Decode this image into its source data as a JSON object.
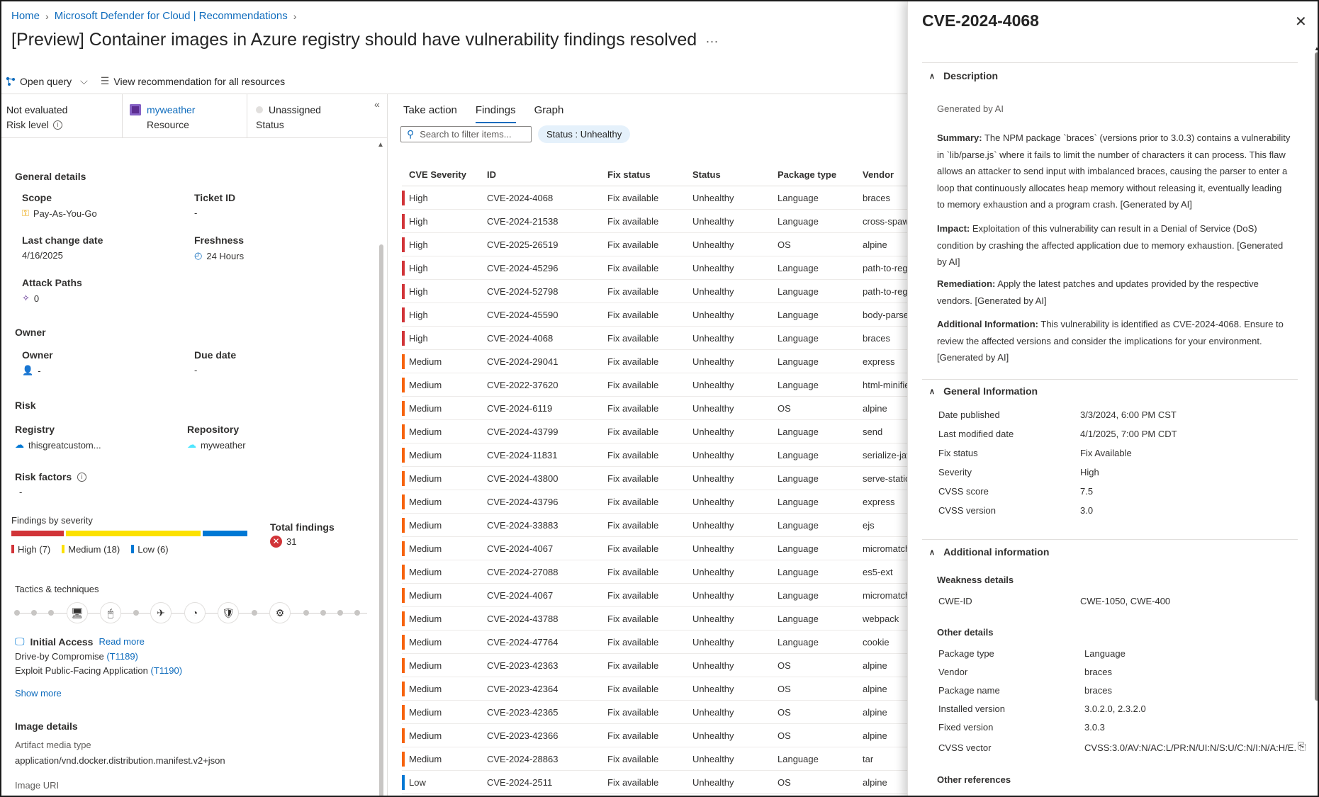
{
  "breadcrumb": {
    "home": "Home",
    "parent": "Microsoft Defender for Cloud | Recommendations"
  },
  "page_title": "[Preview] Container images in Azure registry should have vulnerability findings resolved",
  "title_more": "...",
  "toolbar": {
    "open_query": "Open query",
    "view_all": "View recommendation for all resources"
  },
  "summary": {
    "risk_value": "Not evaluated",
    "risk_label": "Risk level",
    "resource_value": "myweather",
    "resource_label": "Resource",
    "status_value": "Unassigned",
    "status_label": "Status"
  },
  "general": {
    "heading": "General details",
    "scope_label": "Scope",
    "scope_value": "Pay-As-You-Go",
    "ticket_label": "Ticket ID",
    "ticket_value": "-",
    "lastchange_label": "Last change date",
    "lastchange_value": "4/16/2025",
    "freshness_label": "Freshness",
    "freshness_value": "24 Hours",
    "attack_label": "Attack Paths",
    "attack_value": "0"
  },
  "owner": {
    "heading": "Owner",
    "owner_label": "Owner",
    "owner_value": "-",
    "due_label": "Due date",
    "due_value": "-"
  },
  "risk": {
    "heading": "Risk",
    "registry_label": "Registry",
    "registry_value": "thisgreatcustom...",
    "repo_label": "Repository",
    "repo_value": "myweather",
    "factors_label": "Risk factors",
    "factors_value": "-"
  },
  "findings": {
    "heading": "Findings by severity",
    "high": "High (7)",
    "medium": "Medium (18)",
    "low": "Low (6)",
    "high_count": 7,
    "medium_count": 18,
    "low_count": 6,
    "total_label": "Total findings",
    "total_value": "31",
    "colors": {
      "high": "#d13438",
      "medium": "#fce100",
      "low": "#0078d4"
    }
  },
  "tactics": {
    "heading": "Tactics & techniques",
    "initial_access": "Initial Access",
    "read_more": "Read more",
    "t1_text": "Drive-by Compromise",
    "t1_id": "(T1189)",
    "t2_text": "Exploit Public-Facing Application",
    "t2_id": "(T1190)",
    "show_more": "Show more"
  },
  "image": {
    "heading": "Image details",
    "media_label": "Artifact media type",
    "media_value": "application/vnd.docker.distribution.manifest.v2+json",
    "uri_label": "Image URI"
  },
  "tabs": [
    "Take action",
    "Findings",
    "Graph"
  ],
  "search_placeholder": "Search to filter items...",
  "status_filter": "Status : Unhealthy",
  "table": {
    "headers": [
      "CVE Severity",
      "ID",
      "Fix status",
      "Status",
      "Package type",
      "Vendor"
    ],
    "rows": [
      [
        "High",
        "CVE-2024-4068",
        "Fix available",
        "Unhealthy",
        "Language",
        "braces"
      ],
      [
        "High",
        "CVE-2024-21538",
        "Fix available",
        "Unhealthy",
        "Language",
        "cross-spawn"
      ],
      [
        "High",
        "CVE-2025-26519",
        "Fix available",
        "Unhealthy",
        "OS",
        "alpine"
      ],
      [
        "High",
        "CVE-2024-45296",
        "Fix available",
        "Unhealthy",
        "Language",
        "path-to-regexp"
      ],
      [
        "High",
        "CVE-2024-52798",
        "Fix available",
        "Unhealthy",
        "Language",
        "path-to-regexp"
      ],
      [
        "High",
        "CVE-2024-45590",
        "Fix available",
        "Unhealthy",
        "Language",
        "body-parser"
      ],
      [
        "High",
        "CVE-2024-4068",
        "Fix available",
        "Unhealthy",
        "Language",
        "braces"
      ],
      [
        "Medium",
        "CVE-2024-29041",
        "Fix available",
        "Unhealthy",
        "Language",
        "express"
      ],
      [
        "Medium",
        "CVE-2022-37620",
        "Fix available",
        "Unhealthy",
        "Language",
        "html-minifier"
      ],
      [
        "Medium",
        "CVE-2024-6119",
        "Fix available",
        "Unhealthy",
        "OS",
        "alpine"
      ],
      [
        "Medium",
        "CVE-2024-43799",
        "Fix available",
        "Unhealthy",
        "Language",
        "send"
      ],
      [
        "Medium",
        "CVE-2024-11831",
        "Fix available",
        "Unhealthy",
        "Language",
        "serialize-javascript"
      ],
      [
        "Medium",
        "CVE-2024-43800",
        "Fix available",
        "Unhealthy",
        "Language",
        "serve-static"
      ],
      [
        "Medium",
        "CVE-2024-43796",
        "Fix available",
        "Unhealthy",
        "Language",
        "express"
      ],
      [
        "Medium",
        "CVE-2024-33883",
        "Fix available",
        "Unhealthy",
        "Language",
        "ejs"
      ],
      [
        "Medium",
        "CVE-2024-4067",
        "Fix available",
        "Unhealthy",
        "Language",
        "micromatch"
      ],
      [
        "Medium",
        "CVE-2024-27088",
        "Fix available",
        "Unhealthy",
        "Language",
        "es5-ext"
      ],
      [
        "Medium",
        "CVE-2024-4067",
        "Fix available",
        "Unhealthy",
        "Language",
        "micromatch"
      ],
      [
        "Medium",
        "CVE-2024-43788",
        "Fix available",
        "Unhealthy",
        "Language",
        "webpack"
      ],
      [
        "Medium",
        "CVE-2024-47764",
        "Fix available",
        "Unhealthy",
        "Language",
        "cookie"
      ],
      [
        "Medium",
        "CVE-2023-42363",
        "Fix available",
        "Unhealthy",
        "OS",
        "alpine"
      ],
      [
        "Medium",
        "CVE-2023-42364",
        "Fix available",
        "Unhealthy",
        "OS",
        "alpine"
      ],
      [
        "Medium",
        "CVE-2023-42365",
        "Fix available",
        "Unhealthy",
        "OS",
        "alpine"
      ],
      [
        "Medium",
        "CVE-2023-42366",
        "Fix available",
        "Unhealthy",
        "OS",
        "alpine"
      ],
      [
        "Medium",
        "CVE-2024-28863",
        "Fix available",
        "Unhealthy",
        "Language",
        "tar"
      ],
      [
        "Low",
        "CVE-2024-2511",
        "Fix available",
        "Unhealthy",
        "OS",
        "alpine"
      ]
    ]
  },
  "panel": {
    "title": "CVE-2024-4068",
    "description_heading": "Description",
    "generated": "Generated by AI",
    "summary_label": "Summary:",
    "summary_text": "The NPM package `braces` (versions prior to 3.0.3) contains a vulnerability in `lib/parse.js` where it fails to limit the number of characters it can process. This flaw allows an attacker to send input with imbalanced braces, causing the parser to enter a loop that continuously allocates heap memory without releasing it, eventually leading to memory exhaustion and a program crash. [Generated by AI]",
    "impact_label": "Impact:",
    "impact_text": "Exploitation of this vulnerability can result in a Denial of Service (DoS) condition by crashing the affected application due to memory exhaustion. [Generated by AI]",
    "remediation_label": "Remediation:",
    "remediation_text": "Apply the latest patches and updates provided by the respective vendors. [Generated by AI]",
    "additional_label": "Additional Information:",
    "additional_text": "This vulnerability is identified as CVE-2024-4068. Ensure to review the affected versions and consider the implications for your environment. [Generated by AI]",
    "general_heading": "General Information",
    "general": [
      [
        "Date published",
        "3/3/2024, 6:00 PM CST"
      ],
      [
        "Last modified date",
        "4/1/2025, 7:00 PM CDT"
      ],
      [
        "Fix status",
        "Fix Available"
      ],
      [
        "Severity",
        "High"
      ],
      [
        "CVSS score",
        "7.5"
      ],
      [
        "CVSS version",
        "3.0"
      ]
    ],
    "additional_heading": "Additional information",
    "weakness_heading": "Weakness details",
    "cwe_label": "CWE-ID",
    "cwe_value": "CWE-1050, CWE-400",
    "other_heading": "Other details",
    "other": [
      [
        "Package type",
        "Language"
      ],
      [
        "Vendor",
        "braces"
      ],
      [
        "Package name",
        "braces"
      ],
      [
        "Installed version",
        "3.0.2.0, 2.3.2.0"
      ],
      [
        "Fixed version",
        "3.0.3"
      ],
      [
        "CVSS vector",
        "CVSS:3.0/AV:N/AC:L/PR:N/UI:N/S:U/C:N/I:N/A:H/E..."
      ]
    ],
    "refs_heading": "Other references"
  },
  "colors": {
    "accent": "#0f6cbd",
    "high": "#d13438",
    "medium": "#f7630c",
    "low": "#0078d4"
  }
}
